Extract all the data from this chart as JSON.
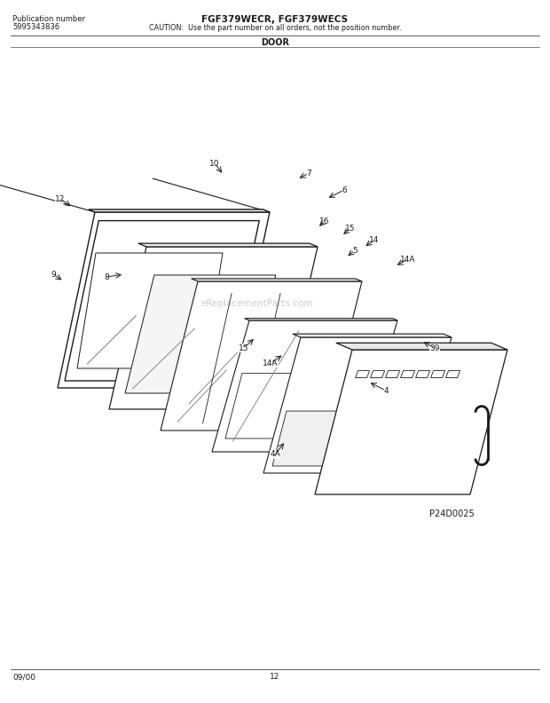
{
  "title_line1": "FGF379WECR, FGF379WECS",
  "title_line2": "CAUTION:  Use the part number on all orders, not the position number.",
  "pub_label": "Publication number",
  "pub_number": "5995343836",
  "section_title": "DOOR",
  "part_number_img": "P24D0025",
  "footer_left": "09/00",
  "footer_center": "12",
  "background_color": "#ffffff",
  "line_color": "#1a1a1a",
  "text_color": "#1a1a1a",
  "watermark_text": "eReplacementParts.com",
  "watermark_color": "#bbaa99"
}
